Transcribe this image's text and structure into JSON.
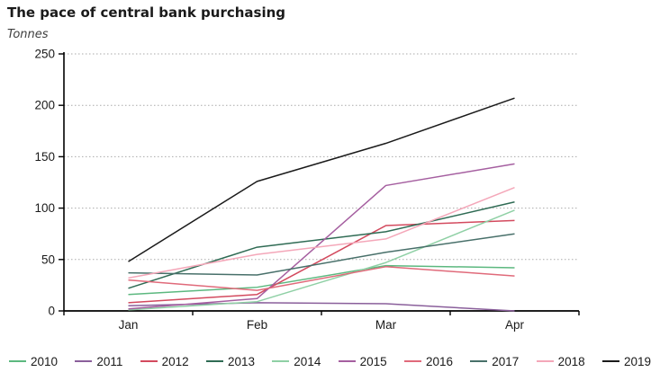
{
  "header": {
    "title": "The pace of central bank purchasing",
    "units_label": "Tonnes"
  },
  "chart_data": {
    "type": "line",
    "title": "The pace of central bank purchasing",
    "ylabel": "Tonnes",
    "xlabel": "",
    "categories": [
      "Jan",
      "Feb",
      "Mar",
      "Apr"
    ],
    "ylim": [
      0,
      250
    ],
    "ytick_interval": 50,
    "yticks": [
      0,
      50,
      100,
      150,
      200,
      250
    ],
    "grid": "horizontal-dotted",
    "legend_position": "bottom",
    "series": [
      {
        "name": "2010",
        "color": "#5cb87f",
        "values": [
          16,
          23,
          44,
          42
        ]
      },
      {
        "name": "2011",
        "color": "#8a5f9b",
        "values": [
          5,
          8,
          7,
          0
        ]
      },
      {
        "name": "2012",
        "color": "#d34a5e",
        "values": [
          8,
          16,
          83,
          88
        ]
      },
      {
        "name": "2013",
        "color": "#2f6b54",
        "values": [
          22,
          62,
          77,
          106
        ]
      },
      {
        "name": "2014",
        "color": "#8fd0a5",
        "values": [
          1,
          9,
          47,
          98
        ]
      },
      {
        "name": "2015",
        "color": "#a55fa0",
        "values": [
          2,
          12,
          122,
          143
        ]
      },
      {
        "name": "2016",
        "color": "#e06a7a",
        "values": [
          30,
          20,
          43,
          34
        ]
      },
      {
        "name": "2017",
        "color": "#48706a",
        "values": [
          37,
          35,
          57,
          75
        ]
      },
      {
        "name": "2018",
        "color": "#f4a7b9",
        "values": [
          32,
          55,
          70,
          120
        ]
      },
      {
        "name": "2019",
        "color": "#1a1a1a",
        "values": [
          48,
          126,
          163,
          207
        ]
      }
    ]
  },
  "style": {
    "axis_color": "#000000",
    "gridline_color": "#aaaaaa",
    "background": "#ffffff"
  }
}
